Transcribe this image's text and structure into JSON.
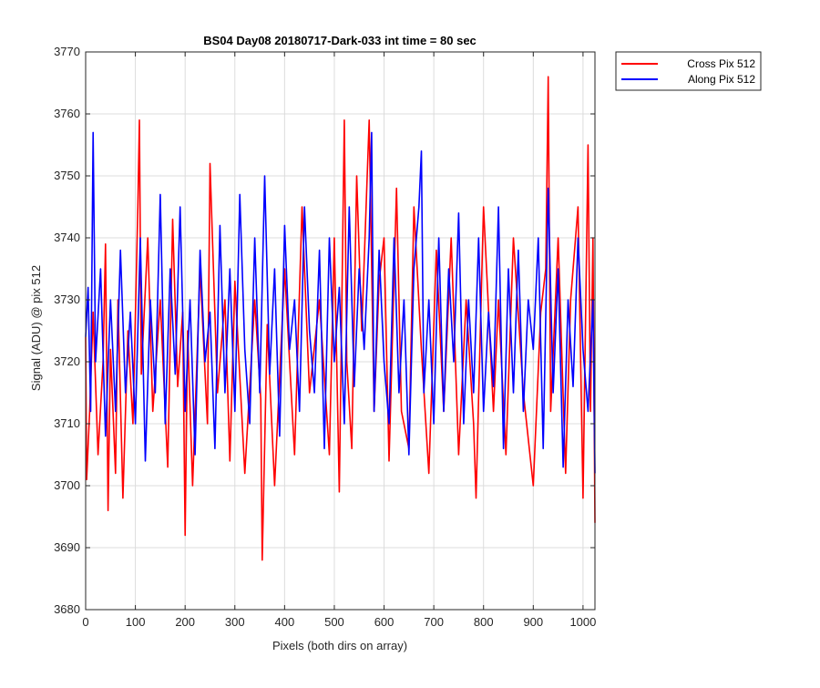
{
  "chart_data": {
    "type": "line",
    "title": "BS04 Day08 20180717-Dark-033 int time = 80 sec",
    "xlabel": "Pixels (both dirs on array)",
    "ylabel": "Signal (ADU) @ pix 512",
    "xlim": [
      0,
      1024
    ],
    "ylim": [
      3680,
      3770
    ],
    "xticks": [
      0,
      100,
      200,
      300,
      400,
      500,
      600,
      700,
      800,
      900,
      1000
    ],
    "yticks": [
      3680,
      3690,
      3700,
      3710,
      3720,
      3730,
      3740,
      3750,
      3760,
      3770
    ],
    "grid": true,
    "legend": "outside-top-right",
    "series": [
      {
        "name": "Cross Pix 512",
        "color": "#ff0000",
        "x": [
          0,
          2,
          8,
          15,
          25,
          35,
          40,
          45,
          50,
          60,
          65,
          75,
          85,
          95,
          105,
          108,
          112,
          125,
          135,
          150,
          165,
          175,
          185,
          195,
          200,
          205,
          215,
          230,
          245,
          250,
          265,
          280,
          290,
          300,
          320,
          340,
          352,
          355,
          365,
          380,
          400,
          420,
          435,
          450,
          470,
          490,
          500,
          510,
          520,
          525,
          535,
          545,
          555,
          570,
          580,
          590,
          600,
          610,
          625,
          635,
          650,
          660,
          675,
          690,
          705,
          720,
          735,
          750,
          765,
          780,
          785,
          800,
          820,
          830,
          845,
          860,
          880,
          900,
          915,
          925,
          930,
          935,
          950,
          965,
          975,
          990,
          1000,
          1010,
          1015,
          1020,
          1024
        ],
        "y": [
          3724,
          3701,
          3712,
          3728,
          3705,
          3720,
          3739,
          3696,
          3722,
          3702,
          3730,
          3698,
          3725,
          3710,
          3745,
          3759,
          3718,
          3740,
          3712,
          3730,
          3703,
          3743,
          3716,
          3728,
          3692,
          3725,
          3700,
          3735,
          3710,
          3752,
          3715,
          3730,
          3704,
          3733,
          3702,
          3730,
          3714,
          3688,
          3726,
          3700,
          3735,
          3705,
          3745,
          3715,
          3730,
          3705,
          3740,
          3699,
          3759,
          3720,
          3706,
          3750,
          3725,
          3759,
          3712,
          3733,
          3740,
          3704,
          3748,
          3712,
          3706,
          3745,
          3722,
          3702,
          3738,
          3712,
          3740,
          3705,
          3730,
          3710,
          3698,
          3745,
          3712,
          3730,
          3705,
          3740,
          3715,
          3700,
          3728,
          3735,
          3766,
          3712,
          3740,
          3702,
          3730,
          3745,
          3698,
          3755,
          3712,
          3740,
          3694
        ]
      },
      {
        "name": "Along Pix 512",
        "color": "#0000ff",
        "x": [
          0,
          5,
          10,
          15,
          20,
          30,
          40,
          50,
          60,
          70,
          80,
          90,
          100,
          110,
          120,
          130,
          140,
          150,
          160,
          170,
          180,
          190,
          200,
          210,
          220,
          230,
          240,
          250,
          260,
          270,
          280,
          290,
          300,
          310,
          320,
          330,
          340,
          350,
          360,
          370,
          380,
          390,
          400,
          410,
          420,
          430,
          440,
          450,
          460,
          470,
          480,
          490,
          500,
          510,
          520,
          530,
          540,
          550,
          560,
          570,
          575,
          580,
          590,
          600,
          610,
          620,
          630,
          640,
          650,
          660,
          670,
          675,
          680,
          690,
          700,
          710,
          720,
          730,
          740,
          750,
          760,
          770,
          780,
          790,
          800,
          810,
          820,
          830,
          840,
          850,
          860,
          870,
          880,
          890,
          900,
          910,
          920,
          930,
          940,
          950,
          960,
          970,
          980,
          990,
          1000,
          1010,
          1020,
          1024
        ],
        "y": [
          3724,
          3732,
          3712,
          3757,
          3720,
          3735,
          3708,
          3730,
          3712,
          3738,
          3715,
          3728,
          3710,
          3740,
          3704,
          3730,
          3715,
          3747,
          3710,
          3735,
          3718,
          3745,
          3712,
          3730,
          3705,
          3738,
          3720,
          3728,
          3706,
          3742,
          3715,
          3735,
          3712,
          3747,
          3722,
          3710,
          3740,
          3715,
          3750,
          3718,
          3735,
          3708,
          3742,
          3722,
          3730,
          3712,
          3745,
          3725,
          3715,
          3738,
          3706,
          3740,
          3720,
          3732,
          3710,
          3745,
          3716,
          3735,
          3722,
          3740,
          3757,
          3712,
          3738,
          3720,
          3710,
          3740,
          3715,
          3730,
          3705,
          3735,
          3745,
          3754,
          3715,
          3730,
          3710,
          3740,
          3712,
          3735,
          3720,
          3744,
          3710,
          3730,
          3715,
          3740,
          3712,
          3728,
          3716,
          3745,
          3706,
          3735,
          3715,
          3738,
          3712,
          3730,
          3722,
          3740,
          3706,
          3748,
          3715,
          3735,
          3703,
          3730,
          3716,
          3740,
          3722,
          3712,
          3730,
          3702
        ]
      }
    ]
  }
}
